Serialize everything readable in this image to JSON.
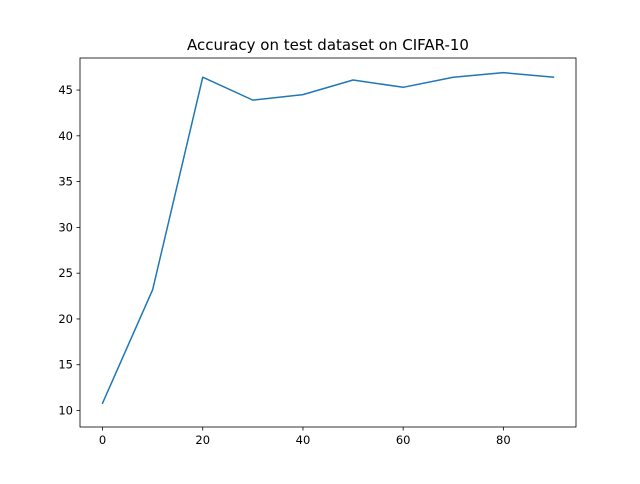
{
  "chart_data": {
    "type": "line",
    "title": "Accuracy on test dataset on CIFAR-10",
    "xlabel": "",
    "ylabel": "",
    "xlim": [
      -4.5,
      94.5
    ],
    "ylim": [
      8.2,
      48.5
    ],
    "xticks": [
      0,
      20,
      40,
      60,
      80
    ],
    "yticks": [
      10,
      15,
      20,
      25,
      30,
      35,
      40,
      45
    ],
    "grid": false,
    "legend": "none",
    "series": [
      {
        "color": "#1f77b4",
        "x": [
          0,
          10,
          20,
          30,
          40,
          50,
          60,
          70,
          80,
          90
        ],
        "y": [
          10.8,
          23.2,
          46.4,
          43.9,
          44.5,
          46.1,
          45.3,
          46.4,
          46.9,
          46.4
        ]
      }
    ]
  }
}
